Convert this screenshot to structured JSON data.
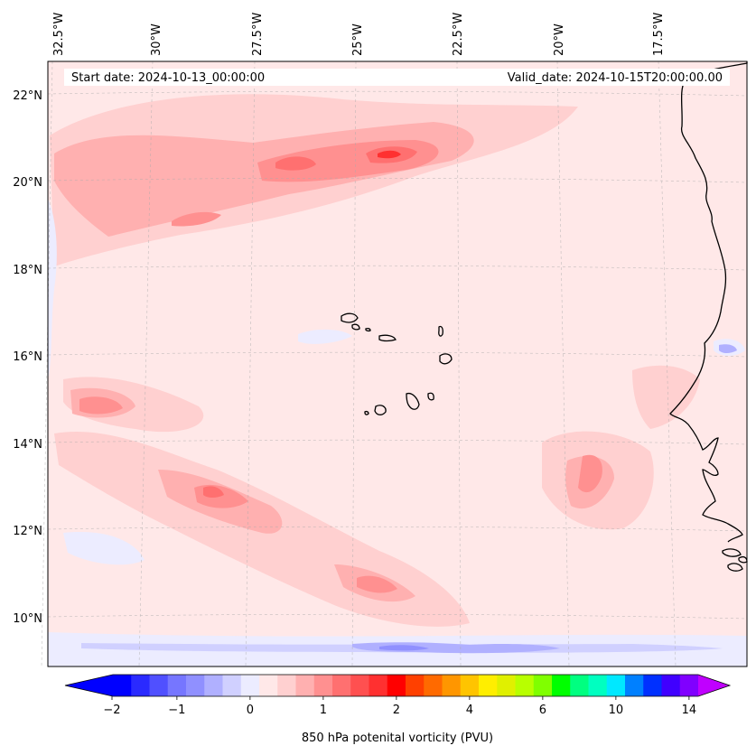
{
  "map": {
    "start_date": "Start date: 2024-10-13_00:00:00",
    "valid_date": "Valid_date: 2024-10-15T20:00:00.00",
    "lon_labels": [
      "32.5°W",
      "30°W",
      "27.5°W",
      "25°W",
      "22.5°W",
      "20°W",
      "17.5°W"
    ],
    "lat_labels": [
      "22°N",
      "20°N",
      "18°N",
      "16°N",
      "14°N",
      "12°N",
      "10°N"
    ]
  },
  "colorbar": {
    "title": "850 hPa potenital vorticity (PVU)",
    "tick_labels": [
      "−2",
      "−1",
      "0",
      "1",
      "2",
      "4",
      "6",
      "10",
      "14"
    ],
    "colors": [
      "#0000ff",
      "#2a2aff",
      "#5050ff",
      "#7676ff",
      "#9090ff",
      "#b0b0ff",
      "#d0d0ff",
      "#ececff",
      "#ffe8e8",
      "#ffd0d0",
      "#ffb0b0",
      "#ff9090",
      "#ff7070",
      "#ff5050",
      "#ff3030",
      "#ff0000",
      "#ff4000",
      "#ff6a00",
      "#ff9600",
      "#ffc400",
      "#ffee00",
      "#e0f000",
      "#b8ff00",
      "#80ff00",
      "#00ff00",
      "#00ff80",
      "#00ffc0",
      "#00e8ff",
      "#0080ff",
      "#0030ff",
      "#4000ff",
      "#8000ff"
    ],
    "under_color": "#0000ff",
    "over_color": "#c000ff"
  },
  "palette": {
    "background_field": "#ffe8e8",
    "light_pink": "#ffd0d0",
    "pink": "#ffb0b0",
    "mid_red": "#ff9090",
    "red": "#ff7070",
    "strong_red": "#ff3030",
    "light_blue": "#ececff",
    "blue": "#d0d0ff",
    "mid_blue": "#b0b0ff",
    "deep_blue": "#9090ff",
    "coast": "#000000"
  }
}
